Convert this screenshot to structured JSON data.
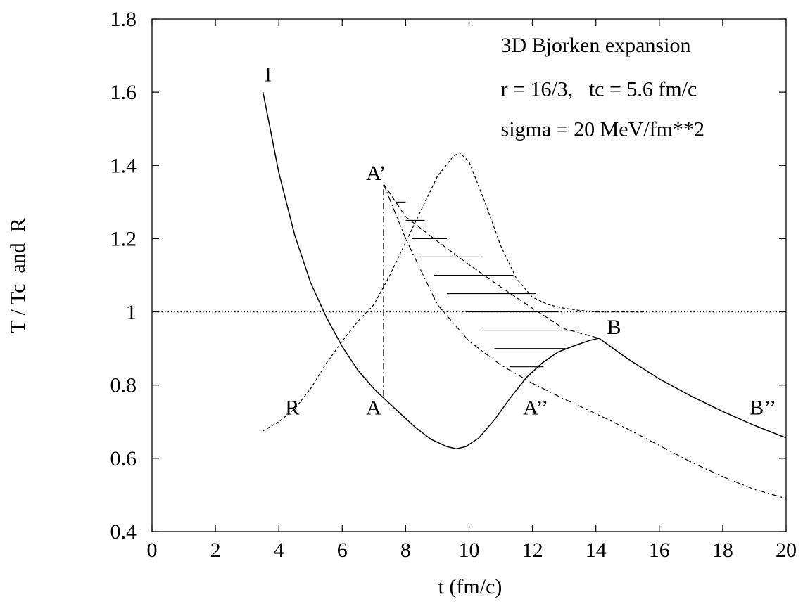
{
  "chart_data": {
    "type": "line",
    "title": "",
    "xlabel": "t (fm/c)",
    "ylabel": "T / Tc  and  R",
    "xlim": [
      0,
      20
    ],
    "ylim": [
      0.4,
      1.8
    ],
    "xticks": [
      0,
      2,
      4,
      6,
      8,
      10,
      12,
      14,
      16,
      18,
      20
    ],
    "yticks": [
      0.4,
      0.6,
      0.8,
      1.0,
      1.2,
      1.4,
      1.6,
      1.8
    ],
    "xtick_labels": [
      "0",
      "2",
      "4",
      "6",
      "8",
      "10",
      "12",
      "14",
      "16",
      "18",
      "20"
    ],
    "ytick_labels": [
      "0.4",
      "0.6",
      "0.8",
      "1",
      "1.2",
      "1.4",
      "1.6",
      "1.8"
    ],
    "grid": false,
    "annotations": [
      {
        "text": "3D Bjorken expansion",
        "x": 11.0,
        "y": 1.71
      },
      {
        "text": "r = 16/3,   tc = 5.6 fm/c",
        "x": 11.0,
        "y": 1.59
      },
      {
        "text": "sigma = 20 MeV/fm**2",
        "x": 11.0,
        "y": 1.48
      }
    ],
    "point_labels": [
      {
        "text": "I",
        "x": 3.55,
        "y": 1.63
      },
      {
        "text": "A’",
        "x": 6.75,
        "y": 1.36
      },
      {
        "text": "A",
        "x": 6.75,
        "y": 0.72
      },
      {
        "text": "R",
        "x": 4.2,
        "y": 0.72
      },
      {
        "text": "A’’",
        "x": 11.7,
        "y": 0.72
      },
      {
        "text": "B",
        "x": 14.35,
        "y": 0.94
      },
      {
        "text": "B’’",
        "x": 18.85,
        "y": 0.72
      }
    ],
    "series": [
      {
        "style": "solid",
        "x": [
          3.5,
          4.0,
          4.5,
          5.0,
          5.5,
          6.0,
          6.5,
          7.0,
          7.3,
          7.8,
          8.3,
          8.8,
          9.3,
          9.6,
          9.9,
          10.3,
          10.8,
          11.3,
          11.8,
          12.3,
          12.8,
          13.3,
          13.8,
          14.1
        ],
        "y": [
          1.6,
          1.38,
          1.21,
          1.08,
          0.985,
          0.905,
          0.84,
          0.79,
          0.765,
          0.725,
          0.685,
          0.652,
          0.632,
          0.626,
          0.632,
          0.655,
          0.705,
          0.765,
          0.82,
          0.86,
          0.89,
          0.907,
          0.922,
          0.928
        ]
      },
      {
        "style": "solid",
        "x": [
          14.1,
          15.0,
          16.0,
          17.0,
          18.0,
          19.0,
          20.0
        ],
        "y": [
          0.928,
          0.872,
          0.817,
          0.77,
          0.728,
          0.69,
          0.656
        ]
      },
      {
        "style": "dashed",
        "x": [
          7.3,
          8.0,
          9.0,
          10.0,
          11.0,
          12.0,
          13.0,
          14.1
        ],
        "y": [
          1.35,
          1.26,
          1.193,
          1.129,
          1.068,
          1.01,
          0.954,
          0.928
        ]
      },
      {
        "style": "dash-dot",
        "x": [
          7.3,
          8.0,
          9.0,
          10.0,
          11.0,
          12.0,
          13.0,
          14.0,
          15.0,
          16.0,
          17.0,
          18.0,
          19.0,
          20.0
        ],
        "y": [
          1.35,
          1.2,
          1.02,
          0.92,
          0.855,
          0.805,
          0.762,
          0.722,
          0.68,
          0.635,
          0.59,
          0.55,
          0.515,
          0.49
        ]
      },
      {
        "style": "dash-dot",
        "x": [
          7.3,
          7.3
        ],
        "y": [
          0.77,
          1.35
        ]
      },
      {
        "style": "dotted",
        "x": [
          0,
          20
        ],
        "y": [
          1.0,
          1.0
        ]
      },
      {
        "style": "fine-dashed",
        "x": [
          3.5,
          4.0,
          4.5,
          5.0,
          5.5,
          6.0,
          6.5,
          7.0,
          7.5,
          8.0,
          8.5,
          9.0,
          9.5,
          9.7,
          10.0,
          10.5,
          11.0,
          11.5,
          12.0,
          12.5,
          13.0,
          13.5,
          14.0,
          14.5,
          15.0,
          15.5
        ],
        "y": [
          0.675,
          0.7,
          0.735,
          0.79,
          0.86,
          0.92,
          0.975,
          1.02,
          1.1,
          1.19,
          1.28,
          1.37,
          1.425,
          1.435,
          1.41,
          1.3,
          1.18,
          1.09,
          1.04,
          1.02,
          1.01,
          1.004,
          1.0,
          1.0,
          1.0,
          1.0
        ]
      }
    ],
    "hatch_lines": [
      {
        "y": 1.3,
        "x": [
          7.7,
          8.0
        ]
      },
      {
        "y": 1.25,
        "x": [
          8.0,
          8.6
        ]
      },
      {
        "y": 1.2,
        "x": [
          8.2,
          9.3
        ]
      },
      {
        "y": 1.15,
        "x": [
          8.5,
          10.4
        ]
      },
      {
        "y": 1.1,
        "x": [
          8.9,
          11.4
        ]
      },
      {
        "y": 1.05,
        "x": [
          9.3,
          12.1
        ]
      },
      {
        "y": 1.0,
        "x": [
          9.9,
          12.8
        ]
      },
      {
        "y": 0.95,
        "x": [
          10.4,
          13.5
        ]
      },
      {
        "y": 0.9,
        "x": [
          10.8,
          13.05
        ]
      },
      {
        "y": 0.85,
        "x": [
          11.3,
          12.35
        ]
      }
    ]
  }
}
